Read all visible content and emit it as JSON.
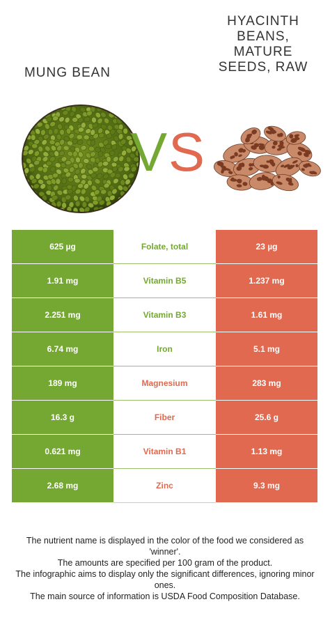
{
  "left_food": {
    "name": "MUNG BEAN",
    "color": "#74a832"
  },
  "right_food": {
    "name": "HYACINTH\nBEANS,\nMATURE\nSEEDS, RAW",
    "color": "#e1694f"
  },
  "vs": {
    "v": "V",
    "s": "S"
  },
  "nutrients": [
    {
      "name": "Folate, total",
      "left": "625 µg",
      "right": "23 µg",
      "winner": "left"
    },
    {
      "name": "Vitamin B5",
      "left": "1.91 mg",
      "right": "1.237 mg",
      "winner": "left"
    },
    {
      "name": "Vitamin B3",
      "left": "2.251 mg",
      "right": "1.61 mg",
      "winner": "left"
    },
    {
      "name": "Iron",
      "left": "6.74 mg",
      "right": "5.1 mg",
      "winner": "left"
    },
    {
      "name": "Magnesium",
      "left": "189 mg",
      "right": "283 mg",
      "winner": "right"
    },
    {
      "name": "Fiber",
      "left": "16.3 g",
      "right": "25.6 g",
      "winner": "right"
    },
    {
      "name": "Vitamin B1",
      "left": "0.621 mg",
      "right": "1.13 mg",
      "winner": "right"
    },
    {
      "name": "Zinc",
      "left": "2.68 mg",
      "right": "9.3 mg",
      "winner": "right"
    }
  ],
  "footer": [
    "The nutrient name is displayed in the color of the food we considered as 'winner'.",
    "The amounts are specified per 100 gram of the product.",
    "The infographic aims to display only the significant differences, ignoring minor ones.",
    "The main source of information is USDA Food Composition Database."
  ]
}
